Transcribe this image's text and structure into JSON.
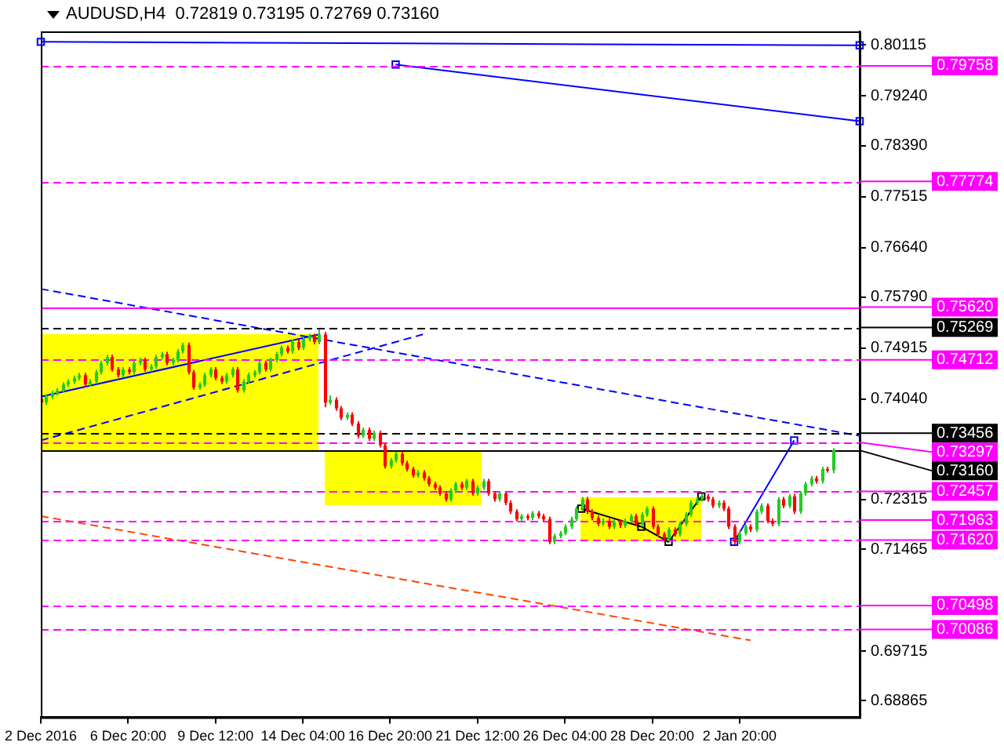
{
  "chart_data": {
    "type": "candlestick",
    "title": "AUDUSD,H4  0.72819 0.73195 0.72769 0.73160",
    "grid": false,
    "ylim": [
      0.6858,
      0.8035
    ],
    "categories": [
      "2 Dec 2016",
      null,
      null,
      null,
      null,
      null,
      null,
      null,
      null,
      null,
      null,
      null,
      null,
      null,
      null,
      null,
      "6 Dec 20:00",
      null,
      null,
      null,
      null,
      null,
      null,
      null,
      null,
      null,
      null,
      null,
      null,
      null,
      null,
      null,
      "9 Dec 12:00",
      null,
      null,
      null,
      null,
      null,
      null,
      null,
      null,
      null,
      null,
      null,
      null,
      null,
      null,
      null,
      "14 Dec 04:00",
      null,
      null,
      null,
      null,
      null,
      null,
      null,
      null,
      null,
      null,
      null,
      null,
      null,
      null,
      null,
      "16 Dec 20:00",
      null,
      null,
      null,
      null,
      null,
      null,
      null,
      null,
      null,
      null,
      null,
      null,
      null,
      null,
      null,
      "21 Dec 12:00",
      null,
      null,
      null,
      null,
      null,
      null,
      null,
      null,
      null,
      null,
      null,
      null,
      null,
      null,
      null,
      "26 Dec 04:00",
      null,
      null,
      null,
      null,
      null,
      null,
      null,
      null,
      null,
      null,
      null,
      null,
      null,
      null,
      null,
      "28 Dec 20:00",
      null,
      null,
      null,
      null,
      null,
      null,
      null,
      null,
      null,
      null,
      null,
      null,
      null,
      null,
      null,
      "2 Jan 20:00",
      null,
      null,
      null,
      null,
      null,
      null,
      null,
      null,
      null,
      null,
      null,
      null,
      null,
      null,
      null,
      null,
      null,
      null,
      null,
      null,
      null,
      null
    ],
    "yticks": [
      {
        "value": 0.80115,
        "label": "0.80115"
      },
      {
        "value": 0.7924,
        "label": "0.79240"
      },
      {
        "value": 0.7839,
        "label": "0.78390"
      },
      {
        "value": 0.77515,
        "label": "0.77515"
      },
      {
        "value": 0.7664,
        "label": "0.76640"
      },
      {
        "value": 0.7579,
        "label": "0.75790"
      },
      {
        "value": 0.74915,
        "label": "0.74915"
      },
      {
        "value": 0.7404,
        "label": "0.74040"
      },
      {
        "value": 0.72315,
        "label": "0.72315"
      },
      {
        "value": 0.71465,
        "label": "0.71465"
      },
      {
        "value": 0.69715,
        "label": "0.69715"
      },
      {
        "value": 0.68865,
        "label": "0.68865"
      }
    ],
    "ohlc": [
      [
        0.7404,
        0.7408,
        0.7394,
        0.7398
      ],
      [
        0.7398,
        0.7412,
        0.7394,
        0.7408
      ],
      [
        0.7408,
        0.7418,
        0.7404,
        0.7414
      ],
      [
        0.7414,
        0.7423,
        0.741,
        0.7419
      ],
      [
        0.7419,
        0.7433,
        0.7415,
        0.7429
      ],
      [
        0.7429,
        0.7438,
        0.7425,
        0.7434
      ],
      [
        0.7434,
        0.7444,
        0.743,
        0.744
      ],
      [
        0.744,
        0.7449,
        0.7436,
        0.7445
      ],
      [
        0.7445,
        0.7449,
        0.7425,
        0.7429
      ],
      [
        0.7429,
        0.7438,
        0.7425,
        0.7434
      ],
      [
        0.7434,
        0.7454,
        0.743,
        0.745
      ],
      [
        0.745,
        0.747,
        0.7446,
        0.7466
      ],
      [
        0.7466,
        0.748,
        0.7462,
        0.7476
      ],
      [
        0.7476,
        0.748,
        0.7451,
        0.7455
      ],
      [
        0.7455,
        0.7459,
        0.7441,
        0.7445
      ],
      [
        0.7445,
        0.7459,
        0.7441,
        0.7455
      ],
      [
        0.7455,
        0.7459,
        0.7446,
        0.745
      ],
      [
        0.745,
        0.747,
        0.7446,
        0.7466
      ],
      [
        0.7466,
        0.7475,
        0.7462,
        0.7471
      ],
      [
        0.7471,
        0.7475,
        0.7451,
        0.7455
      ],
      [
        0.7455,
        0.7464,
        0.7451,
        0.746
      ],
      [
        0.746,
        0.748,
        0.7456,
        0.7476
      ],
      [
        0.7476,
        0.7485,
        0.7472,
        0.7481
      ],
      [
        0.7481,
        0.7485,
        0.7462,
        0.7466
      ],
      [
        0.7466,
        0.7475,
        0.7462,
        0.7471
      ],
      [
        0.7471,
        0.749,
        0.7467,
        0.7486
      ],
      [
        0.7486,
        0.7501,
        0.7482,
        0.7497
      ],
      [
        0.7497,
        0.7501,
        0.7446,
        0.745
      ],
      [
        0.745,
        0.7454,
        0.742,
        0.7424
      ],
      [
        0.7424,
        0.7433,
        0.742,
        0.7429
      ],
      [
        0.7429,
        0.7449,
        0.7425,
        0.7445
      ],
      [
        0.7445,
        0.7459,
        0.7441,
        0.7455
      ],
      [
        0.7455,
        0.7459,
        0.7436,
        0.744
      ],
      [
        0.744,
        0.7444,
        0.743,
        0.7434
      ],
      [
        0.7434,
        0.7449,
        0.743,
        0.7445
      ],
      [
        0.7445,
        0.7459,
        0.7441,
        0.7455
      ],
      [
        0.7455,
        0.7459,
        0.7415,
        0.7419
      ],
      [
        0.7419,
        0.7438,
        0.7415,
        0.7434
      ],
      [
        0.7434,
        0.7449,
        0.743,
        0.7445
      ],
      [
        0.7445,
        0.7454,
        0.7441,
        0.745
      ],
      [
        0.745,
        0.747,
        0.7446,
        0.7466
      ],
      [
        0.7466,
        0.747,
        0.7451,
        0.7455
      ],
      [
        0.7455,
        0.7475,
        0.7451,
        0.7471
      ],
      [
        0.7471,
        0.7485,
        0.7467,
        0.7481
      ],
      [
        0.7481,
        0.7496,
        0.7477,
        0.7492
      ],
      [
        0.7492,
        0.7496,
        0.7482,
        0.7486
      ],
      [
        0.7486,
        0.7506,
        0.7482,
        0.7502
      ],
      [
        0.7502,
        0.7506,
        0.7488,
        0.7492
      ],
      [
        0.7492,
        0.7511,
        0.7488,
        0.7507
      ],
      [
        0.7507,
        0.7516,
        0.7503,
        0.7512
      ],
      [
        0.7512,
        0.7516,
        0.7498,
        0.7502
      ],
      [
        0.7502,
        0.7523,
        0.7498,
        0.7515
      ],
      [
        0.7515,
        0.7519,
        0.739,
        0.7398
      ],
      [
        0.7398,
        0.741,
        0.7394,
        0.7403
      ],
      [
        0.7403,
        0.7407,
        0.7384,
        0.7388
      ],
      [
        0.7388,
        0.7392,
        0.7368,
        0.7372
      ],
      [
        0.7372,
        0.7381,
        0.7368,
        0.7377
      ],
      [
        0.7377,
        0.7381,
        0.7358,
        0.7362
      ],
      [
        0.7362,
        0.7366,
        0.7337,
        0.7341
      ],
      [
        0.7341,
        0.7355,
        0.7337,
        0.7351
      ],
      [
        0.7351,
        0.7355,
        0.7332,
        0.7336
      ],
      [
        0.7336,
        0.735,
        0.7332,
        0.7346
      ],
      [
        0.7346,
        0.735,
        0.7321,
        0.7325
      ],
      [
        0.7325,
        0.7329,
        0.7285,
        0.7289
      ],
      [
        0.7289,
        0.7303,
        0.7285,
        0.7299
      ],
      [
        0.7299,
        0.7314,
        0.7295,
        0.731
      ],
      [
        0.731,
        0.7314,
        0.729,
        0.7294
      ],
      [
        0.7294,
        0.7298,
        0.728,
        0.7284
      ],
      [
        0.7284,
        0.7288,
        0.7269,
        0.7273
      ],
      [
        0.7273,
        0.7282,
        0.7269,
        0.7278
      ],
      [
        0.7278,
        0.7282,
        0.7264,
        0.7268
      ],
      [
        0.7268,
        0.7272,
        0.7254,
        0.7258
      ],
      [
        0.7258,
        0.7262,
        0.7248,
        0.7252
      ],
      [
        0.7252,
        0.7256,
        0.7238,
        0.7242
      ],
      [
        0.7242,
        0.7246,
        0.7228,
        0.7232
      ],
      [
        0.7232,
        0.7251,
        0.7228,
        0.7247
      ],
      [
        0.7247,
        0.7262,
        0.7243,
        0.7258
      ],
      [
        0.7258,
        0.7262,
        0.7248,
        0.7252
      ],
      [
        0.7252,
        0.7267,
        0.7248,
        0.7263
      ],
      [
        0.7263,
        0.7267,
        0.7238,
        0.7242
      ],
      [
        0.7242,
        0.7256,
        0.7238,
        0.7252
      ],
      [
        0.7252,
        0.7267,
        0.7248,
        0.7263
      ],
      [
        0.7263,
        0.7267,
        0.7238,
        0.7242
      ],
      [
        0.7242,
        0.7246,
        0.7228,
        0.7232
      ],
      [
        0.7232,
        0.7246,
        0.7228,
        0.7242
      ],
      [
        0.7242,
        0.7246,
        0.7222,
        0.7226
      ],
      [
        0.7226,
        0.723,
        0.7207,
        0.7211
      ],
      [
        0.7211,
        0.7215,
        0.7194,
        0.7198
      ],
      [
        0.7198,
        0.7207,
        0.7194,
        0.7203
      ],
      [
        0.7203,
        0.7207,
        0.7196,
        0.72
      ],
      [
        0.72,
        0.7212,
        0.7196,
        0.7208
      ],
      [
        0.7208,
        0.7212,
        0.7199,
        0.7203
      ],
      [
        0.7203,
        0.7207,
        0.7194,
        0.7198
      ],
      [
        0.7198,
        0.7202,
        0.7155,
        0.7159
      ],
      [
        0.7159,
        0.7173,
        0.7155,
        0.7169
      ],
      [
        0.7169,
        0.7178,
        0.7165,
        0.7174
      ],
      [
        0.7174,
        0.7189,
        0.717,
        0.7185
      ],
      [
        0.7185,
        0.7202,
        0.7181,
        0.7198
      ],
      [
        0.7198,
        0.722,
        0.7194,
        0.7216
      ],
      [
        0.7216,
        0.7236,
        0.7212,
        0.7232
      ],
      [
        0.7232,
        0.7236,
        0.7207,
        0.7211
      ],
      [
        0.7211,
        0.7215,
        0.7196,
        0.72
      ],
      [
        0.72,
        0.7204,
        0.7186,
        0.719
      ],
      [
        0.719,
        0.7199,
        0.7186,
        0.7195
      ],
      [
        0.7195,
        0.7199,
        0.7181,
        0.7185
      ],
      [
        0.7185,
        0.7197,
        0.7181,
        0.7193
      ],
      [
        0.7193,
        0.7197,
        0.7183,
        0.7187
      ],
      [
        0.7187,
        0.7199,
        0.7183,
        0.7195
      ],
      [
        0.7195,
        0.7207,
        0.7191,
        0.7203
      ],
      [
        0.7203,
        0.7207,
        0.7186,
        0.719
      ],
      [
        0.719,
        0.721,
        0.7186,
        0.7206
      ],
      [
        0.7206,
        0.722,
        0.7202,
        0.7216
      ],
      [
        0.7216,
        0.722,
        0.7181,
        0.7185
      ],
      [
        0.7185,
        0.7189,
        0.7168,
        0.7172
      ],
      [
        0.7172,
        0.7176,
        0.716,
        0.7164
      ],
      [
        0.7164,
        0.7184,
        0.716,
        0.718
      ],
      [
        0.718,
        0.7184,
        0.7168,
        0.7172
      ],
      [
        0.7172,
        0.7194,
        0.7168,
        0.719
      ],
      [
        0.719,
        0.721,
        0.7186,
        0.7206
      ],
      [
        0.7206,
        0.723,
        0.7202,
        0.7226
      ],
      [
        0.7226,
        0.7236,
        0.7222,
        0.7232
      ],
      [
        0.7232,
        0.7241,
        0.7228,
        0.7237
      ],
      [
        0.7237,
        0.7241,
        0.7228,
        0.7232
      ],
      [
        0.7232,
        0.7236,
        0.7217,
        0.7221
      ],
      [
        0.7221,
        0.723,
        0.7217,
        0.7226
      ],
      [
        0.7226,
        0.723,
        0.7212,
        0.7216
      ],
      [
        0.7216,
        0.722,
        0.7181,
        0.7185
      ],
      [
        0.7185,
        0.7189,
        0.7155,
        0.7159
      ],
      [
        0.7159,
        0.7178,
        0.7155,
        0.7174
      ],
      [
        0.7174,
        0.7189,
        0.717,
        0.7185
      ],
      [
        0.7185,
        0.7189,
        0.7176,
        0.718
      ],
      [
        0.718,
        0.7215,
        0.7176,
        0.7211
      ],
      [
        0.7211,
        0.7225,
        0.7207,
        0.7221
      ],
      [
        0.7221,
        0.7225,
        0.7191,
        0.7195
      ],
      [
        0.7195,
        0.7199,
        0.7186,
        0.719
      ],
      [
        0.719,
        0.7236,
        0.7186,
        0.7232
      ],
      [
        0.7232,
        0.7236,
        0.7217,
        0.7221
      ],
      [
        0.7221,
        0.7241,
        0.7217,
        0.7237
      ],
      [
        0.7237,
        0.7241,
        0.7207,
        0.7211
      ],
      [
        0.7211,
        0.7246,
        0.7207,
        0.7242
      ],
      [
        0.7242,
        0.7262,
        0.7238,
        0.7258
      ],
      [
        0.7258,
        0.7272,
        0.7254,
        0.7268
      ],
      [
        0.7268,
        0.7272,
        0.7259,
        0.7263
      ],
      [
        0.7263,
        0.7288,
        0.7259,
        0.7284
      ],
      [
        0.7284,
        0.7288,
        0.7278,
        0.7282
      ],
      [
        0.72819,
        0.73195,
        0.72769,
        0.7316
      ],
      null,
      null,
      null,
      null,
      null
    ],
    "colors": [
      "#ff0000",
      "#22cc22",
      "#22cc22",
      "#22cc22",
      "#22cc22",
      "#22cc22",
      "#22cc22",
      "#22cc22",
      "#ff0000",
      "#22cc22",
      "#22cc22",
      "#22cc22",
      "#22cc22",
      "#ff0000",
      "#ff0000",
      "#22cc22",
      "#ff0000",
      "#22cc22",
      "#22cc22",
      "#ff0000",
      "#22cc22",
      "#22cc22",
      "#22cc22",
      "#ff0000",
      "#22cc22",
      "#22cc22",
      "#22cc22",
      "#ff0000",
      "#ff0000",
      "#22cc22",
      "#22cc22",
      "#22cc22",
      "#ff0000",
      "#ff0000",
      "#22cc22",
      "#22cc22",
      "#ff0000",
      "#22cc22",
      "#22cc22",
      "#22cc22",
      "#22cc22",
      "#ff0000",
      "#22cc22",
      "#22cc22",
      "#22cc22",
      "#ff0000",
      "#22cc22",
      "#ff0000",
      "#22cc22",
      "#22cc22",
      "#ff0000",
      "#22cc22",
      "#ff0000",
      "#22cc22",
      "#ff0000",
      "#ff0000",
      "#22cc22",
      "#ff0000",
      "#ff0000",
      "#22cc22",
      "#ff0000",
      "#22cc22",
      "#ff0000",
      "#ff0000",
      "#22cc22",
      "#22cc22",
      "#ff0000",
      "#ff0000",
      "#ff0000",
      "#22cc22",
      "#ff0000",
      "#ff0000",
      "#ff0000",
      "#ff0000",
      "#ff0000",
      "#22cc22",
      "#22cc22",
      "#ff0000",
      "#22cc22",
      "#ff0000",
      "#22cc22",
      "#22cc22",
      "#ff0000",
      "#ff0000",
      "#22cc22",
      "#ff0000",
      "#ff0000",
      "#ff0000",
      "#22cc22",
      "#ff0000",
      "#22cc22",
      "#ff0000",
      "#ff0000",
      "#ff0000",
      "#22cc22",
      "#22cc22",
      "#22cc22",
      "#22cc22",
      "#22cc22",
      "#22cc22",
      "#ff0000",
      "#ff0000",
      "#ff0000",
      "#22cc22",
      "#ff0000",
      "#22cc22",
      "#ff0000",
      "#22cc22",
      "#22cc22",
      "#ff0000",
      "#22cc22",
      "#22cc22",
      "#ff0000",
      "#ff0000",
      "#ff0000",
      "#22cc22",
      "#ff0000",
      "#22cc22",
      "#22cc22",
      "#22cc22",
      "#22cc22",
      "#22cc22",
      "#ff0000",
      "#ff0000",
      "#22cc22",
      "#ff0000",
      "#ff0000",
      "#ff0000",
      "#22cc22",
      "#22cc22",
      "#ff0000",
      "#22cc22",
      "#22cc22",
      "#ff0000",
      "#ff0000",
      "#22cc22",
      "#ff0000",
      "#22cc22",
      "#ff0000",
      "#22cc22",
      "#22cc22",
      "#22cc22",
      "#ff0000",
      "#22cc22",
      "#ff0000",
      "#22cc22",
      null,
      null,
      null,
      null,
      null
    ],
    "series": [
      {
        "type": "line",
        "values": [
          0.8017,
          null,
          null,
          null,
          null,
          null,
          null,
          null,
          null,
          null,
          null,
          null,
          null,
          null,
          null,
          null,
          null,
          null,
          null,
          null,
          null,
          null,
          null,
          null,
          null,
          null,
          null,
          null,
          null,
          null,
          null,
          null,
          null,
          null,
          null,
          null,
          null,
          null,
          null,
          null,
          null,
          null,
          null,
          null,
          null,
          null,
          null,
          null,
          null,
          null,
          null,
          null,
          null,
          null,
          null,
          null,
          null,
          null,
          null,
          null,
          null,
          null,
          null,
          null,
          null,
          null,
          null,
          null,
          null,
          null,
          null,
          null,
          null,
          null,
          null,
          null,
          null,
          null,
          null,
          null,
          null,
          null,
          null,
          null,
          null,
          null,
          null,
          null,
          null,
          null,
          null,
          null,
          null,
          null,
          null,
          null,
          null,
          null,
          null,
          null,
          null,
          null,
          null,
          null,
          null,
          null,
          null,
          null,
          null,
          null,
          null,
          null,
          null,
          null,
          null,
          null,
          null,
          null,
          null,
          null,
          null,
          null,
          null,
          null,
          null,
          null,
          null,
          null,
          null,
          null,
          null,
          null,
          null,
          null,
          null,
          null,
          null,
          null,
          null,
          null,
          null,
          null,
          null,
          null,
          null,
          null,
          null,
          null,
          null,
          null,
          0.8011
        ],
        "color": "#0000ff",
        "line_style": "solid",
        "marker": "square"
      },
      {
        "type": "line",
        "values": [
          null,
          null,
          null,
          null,
          null,
          null,
          null,
          null,
          null,
          null,
          null,
          null,
          null,
          null,
          null,
          null,
          null,
          null,
          null,
          null,
          null,
          null,
          null,
          null,
          null,
          null,
          null,
          null,
          null,
          null,
          null,
          null,
          null,
          null,
          null,
          null,
          null,
          null,
          null,
          null,
          null,
          null,
          null,
          null,
          null,
          null,
          null,
          null,
          null,
          null,
          null,
          null,
          null,
          null,
          null,
          null,
          null,
          null,
          null,
          null,
          null,
          null,
          null,
          null,
          null,
          0.7978,
          null,
          null,
          null,
          null,
          null,
          null,
          null,
          null,
          null,
          null,
          null,
          null,
          null,
          null,
          null,
          null,
          null,
          null,
          null,
          null,
          null,
          null,
          null,
          null,
          null,
          null,
          null,
          null,
          null,
          null,
          null,
          null,
          null,
          null,
          null,
          null,
          null,
          null,
          null,
          null,
          null,
          null,
          null,
          null,
          null,
          null,
          null,
          null,
          null,
          null,
          null,
          null,
          null,
          null,
          null,
          null,
          null,
          null,
          null,
          null,
          null,
          null,
          null,
          null,
          null,
          null,
          null,
          null,
          null,
          null,
          null,
          null,
          null,
          null,
          null,
          null,
          null,
          null,
          null,
          null,
          null,
          null,
          null,
          null,
          0.7881
        ],
        "color": "#0000ff",
        "line_style": "solid",
        "marker": "square"
      },
      {
        "type": "line",
        "values": [
          0.7593,
          null,
          null,
          null,
          null,
          null,
          null,
          null,
          null,
          null,
          null,
          null,
          null,
          null,
          null,
          null,
          null,
          null,
          null,
          null,
          null,
          null,
          null,
          null,
          null,
          null,
          null,
          null,
          null,
          null,
          null,
          null,
          null,
          null,
          null,
          null,
          null,
          null,
          null,
          null,
          null,
          null,
          null,
          null,
          null,
          null,
          null,
          null,
          null,
          null,
          null,
          null,
          null,
          null,
          null,
          null,
          null,
          null,
          null,
          null,
          null,
          null,
          null,
          null,
          null,
          null,
          null,
          null,
          null,
          null,
          null,
          null,
          null,
          null,
          null,
          null,
          null,
          null,
          null,
          null,
          null,
          null,
          null,
          null,
          null,
          null,
          null,
          null,
          null,
          null,
          null,
          null,
          null,
          null,
          null,
          null,
          null,
          null,
          null,
          null,
          null,
          null,
          null,
          null,
          null,
          null,
          null,
          null,
          null,
          null,
          null,
          null,
          null,
          null,
          null,
          null,
          null,
          null,
          null,
          null,
          null,
          null,
          null,
          null,
          null,
          null,
          null,
          null,
          null,
          null,
          null,
          null,
          null,
          null,
          null,
          null,
          null,
          null,
          null,
          null,
          null,
          null,
          null,
          null,
          null,
          null,
          null,
          null,
          null,
          null,
          0.7341
        ],
        "color": "#0000ff",
        "line_style": "dashed",
        "marker": "none"
      },
      {
        "type": "line",
        "values": [
          0.7408,
          null,
          null,
          null,
          null,
          null,
          null,
          null,
          null,
          null,
          null,
          null,
          null,
          null,
          null,
          null,
          null,
          null,
          null,
          null,
          null,
          null,
          null,
          null,
          null,
          null,
          null,
          null,
          null,
          null,
          null,
          null,
          null,
          null,
          null,
          null,
          null,
          null,
          null,
          null,
          null,
          null,
          null,
          null,
          null,
          null,
          null,
          null,
          null,
          null,
          null,
          0.7515,
          null,
          null,
          null,
          null,
          null,
          null,
          null,
          null,
          null,
          null,
          null,
          null,
          null,
          null,
          null,
          null,
          null,
          null,
          null,
          null,
          null,
          null,
          null,
          null,
          null,
          null,
          null,
          null,
          null,
          null,
          null,
          null,
          null,
          null,
          null,
          null,
          null,
          null,
          null,
          null,
          null,
          null,
          null,
          null,
          null,
          null,
          null,
          null,
          null,
          null,
          null,
          null,
          null,
          null,
          null,
          null,
          null,
          null,
          null,
          null,
          null,
          null,
          null,
          null,
          null,
          null,
          null,
          null,
          null,
          null,
          null,
          null,
          null,
          null,
          null,
          null,
          null,
          null,
          null,
          null,
          null,
          null,
          null,
          null,
          null,
          null,
          null,
          null,
          null,
          null,
          null,
          null,
          null,
          null,
          null,
          null,
          null,
          null,
          null
        ],
        "color": "#0000ff",
        "line_style": "solid",
        "marker": "none"
      },
      {
        "type": "line",
        "values": [
          0.7333,
          null,
          null,
          null,
          null,
          null,
          null,
          null,
          null,
          null,
          null,
          null,
          null,
          null,
          null,
          null,
          null,
          null,
          null,
          null,
          null,
          null,
          null,
          null,
          null,
          null,
          null,
          null,
          null,
          null,
          null,
          null,
          null,
          null,
          null,
          null,
          null,
          null,
          null,
          null,
          null,
          null,
          null,
          null,
          null,
          null,
          null,
          null,
          null,
          null,
          null,
          null,
          null,
          null,
          null,
          null,
          null,
          null,
          null,
          null,
          null,
          null,
          null,
          null,
          null,
          null,
          null,
          null,
          null,
          null,
          0.7515,
          null,
          null,
          null,
          null,
          null,
          null,
          null,
          null,
          null,
          null,
          null,
          null,
          null,
          null,
          null,
          null,
          null,
          null,
          null,
          null,
          null,
          null,
          null,
          null,
          null,
          null,
          null,
          null,
          null,
          null,
          null,
          null,
          null,
          null,
          null,
          null,
          null,
          null,
          null,
          null,
          null,
          null,
          null,
          null,
          null,
          null,
          null,
          null,
          null,
          null,
          null,
          null,
          null,
          null,
          null,
          null,
          null,
          null,
          null,
          null,
          null,
          null,
          null,
          null,
          null,
          null,
          null,
          null,
          null,
          null,
          null,
          null,
          null,
          null,
          null,
          null,
          null,
          null,
          null,
          null
        ],
        "color": "#0000ff",
        "line_style": "dashed",
        "marker": "none"
      },
      {
        "type": "line",
        "values": [
          0.7203,
          null,
          null,
          null,
          null,
          null,
          null,
          null,
          null,
          null,
          null,
          null,
          null,
          null,
          null,
          null,
          null,
          null,
          null,
          null,
          null,
          null,
          null,
          null,
          null,
          null,
          null,
          null,
          null,
          null,
          null,
          null,
          null,
          null,
          null,
          null,
          null,
          null,
          null,
          null,
          null,
          null,
          null,
          null,
          null,
          null,
          null,
          null,
          null,
          null,
          null,
          null,
          null,
          null,
          null,
          null,
          null,
          null,
          null,
          null,
          null,
          null,
          null,
          null,
          null,
          null,
          null,
          null,
          null,
          null,
          null,
          null,
          null,
          null,
          null,
          null,
          null,
          null,
          null,
          null,
          null,
          null,
          null,
          null,
          null,
          null,
          null,
          null,
          null,
          null,
          null,
          null,
          null,
          null,
          null,
          null,
          null,
          null,
          null,
          null,
          null,
          null,
          null,
          null,
          null,
          null,
          null,
          null,
          null,
          null,
          null,
          null,
          null,
          null,
          null,
          null,
          null,
          null,
          null,
          null,
          null,
          null,
          null,
          null,
          null,
          null,
          null,
          null,
          null,
          null,
          0.699,
          null,
          null,
          null,
          null,
          null,
          null,
          null,
          null,
          null,
          null,
          null,
          null,
          null,
          null,
          null,
          null,
          null,
          null,
          null,
          null
        ],
        "color": "#ff4400",
        "line_style": "dashed",
        "marker": "none"
      },
      {
        "type": "line",
        "values": [
          null,
          null,
          null,
          null,
          null,
          null,
          null,
          null,
          null,
          null,
          null,
          null,
          null,
          null,
          null,
          null,
          null,
          null,
          null,
          null,
          null,
          null,
          null,
          null,
          null,
          null,
          null,
          null,
          null,
          null,
          null,
          null,
          null,
          null,
          null,
          null,
          null,
          null,
          null,
          null,
          null,
          null,
          null,
          null,
          null,
          null,
          null,
          null,
          null,
          null,
          null,
          null,
          null,
          null,
          null,
          null,
          null,
          null,
          null,
          null,
          null,
          null,
          null,
          null,
          null,
          null,
          null,
          null,
          null,
          null,
          null,
          null,
          null,
          null,
          null,
          null,
          null,
          null,
          null,
          null,
          null,
          null,
          null,
          null,
          null,
          null,
          null,
          null,
          null,
          null,
          null,
          null,
          null,
          null,
          null,
          null,
          null,
          null,
          null,
          null,
          null,
          null,
          null,
          null,
          null,
          null,
          null,
          null,
          null,
          null,
          null,
          null,
          null,
          null,
          null,
          null,
          null,
          null,
          null,
          null,
          null,
          null,
          null,
          null,
          null,
          null,
          null,
          0.7159,
          null,
          null,
          null,
          null,
          null,
          null,
          null,
          null,
          null,
          null,
          0.7333,
          null,
          null,
          null,
          null,
          null,
          null,
          null,
          null,
          null,
          null,
          null,
          null
        ],
        "color": "#0000ff",
        "line_style": "solid",
        "marker": "square"
      },
      {
        "type": "line",
        "values": [
          null,
          null,
          null,
          null,
          null,
          null,
          null,
          null,
          null,
          null,
          null,
          null,
          null,
          null,
          null,
          null,
          null,
          null,
          null,
          null,
          null,
          null,
          null,
          null,
          null,
          null,
          null,
          null,
          null,
          null,
          null,
          null,
          null,
          null,
          null,
          null,
          null,
          null,
          null,
          null,
          null,
          null,
          null,
          null,
          null,
          null,
          null,
          null,
          null,
          null,
          null,
          null,
          null,
          null,
          null,
          null,
          null,
          null,
          null,
          null,
          null,
          null,
          null,
          null,
          null,
          null,
          null,
          null,
          null,
          null,
          null,
          null,
          null,
          null,
          null,
          null,
          null,
          null,
          null,
          null,
          null,
          null,
          null,
          null,
          null,
          null,
          null,
          null,
          null,
          null,
          null,
          null,
          null,
          null,
          null,
          null,
          null,
          null,
          null,
          0.7216,
          null,
          null,
          null,
          null,
          null,
          null,
          null,
          null,
          null,
          null,
          0.7185,
          null,
          null,
          null,
          null,
          0.7159,
          null,
          null,
          null,
          null,
          null,
          0.7237,
          null,
          null,
          null,
          null,
          null,
          null,
          null,
          null,
          null,
          null,
          null,
          null,
          null,
          null,
          null,
          null,
          null,
          null,
          null,
          null,
          null,
          null,
          null,
          null,
          null,
          null,
          null,
          null,
          null
        ],
        "color": "#000000",
        "line_style": "solid",
        "marker": "square"
      }
    ],
    "ref_lines": [
      {
        "axis": "y",
        "value": 0.79758,
        "label": "0.79758",
        "color": "#ff00ff",
        "line_style": "dashed"
      },
      {
        "axis": "y",
        "value": 0.77774,
        "label": "0.77774",
        "color": "#ff00ff",
        "line_style": "dashed"
      },
      {
        "axis": "y",
        "value": 0.7562,
        "label": "0.75620",
        "color": "#ff00ff",
        "line_style": "solid"
      },
      {
        "axis": "y",
        "value": 0.75269,
        "label": "0.75269",
        "color": "#000000",
        "line_style": "dashed"
      },
      {
        "axis": "y",
        "value": 0.74712,
        "label": "0.74712",
        "color": "#ff00ff",
        "line_style": "dashed"
      },
      {
        "axis": "y",
        "value": 0.73456,
        "label": "0.73456",
        "color": "#000000",
        "line_style": "dashed"
      },
      {
        "axis": "y",
        "value": 0.73297,
        "label": "0.73297",
        "color": "#ff00ff",
        "line_style": "dashed"
      },
      {
        "axis": "y",
        "value": 0.7316,
        "label": "0.73160",
        "color": "#000000",
        "line_style": "solid"
      },
      {
        "axis": "y",
        "value": 0.72457,
        "label": "0.72457",
        "color": "#ff00ff",
        "line_style": "dashed"
      },
      {
        "axis": "y",
        "value": 0.71963,
        "label": "0.71963",
        "color": "#ff00ff",
        "line_style": "dashed"
      },
      {
        "axis": "y",
        "value": 0.7162,
        "label": "0.71620",
        "color": "#ff00ff",
        "line_style": "dashed"
      },
      {
        "axis": "y",
        "value": 0.70498,
        "label": "0.70498",
        "color": "#ff00ff",
        "line_style": "dashed"
      },
      {
        "axis": "y",
        "value": 0.70086,
        "label": "0.70086",
        "color": "#ff00ff",
        "line_style": "dashed"
      }
    ]
  }
}
